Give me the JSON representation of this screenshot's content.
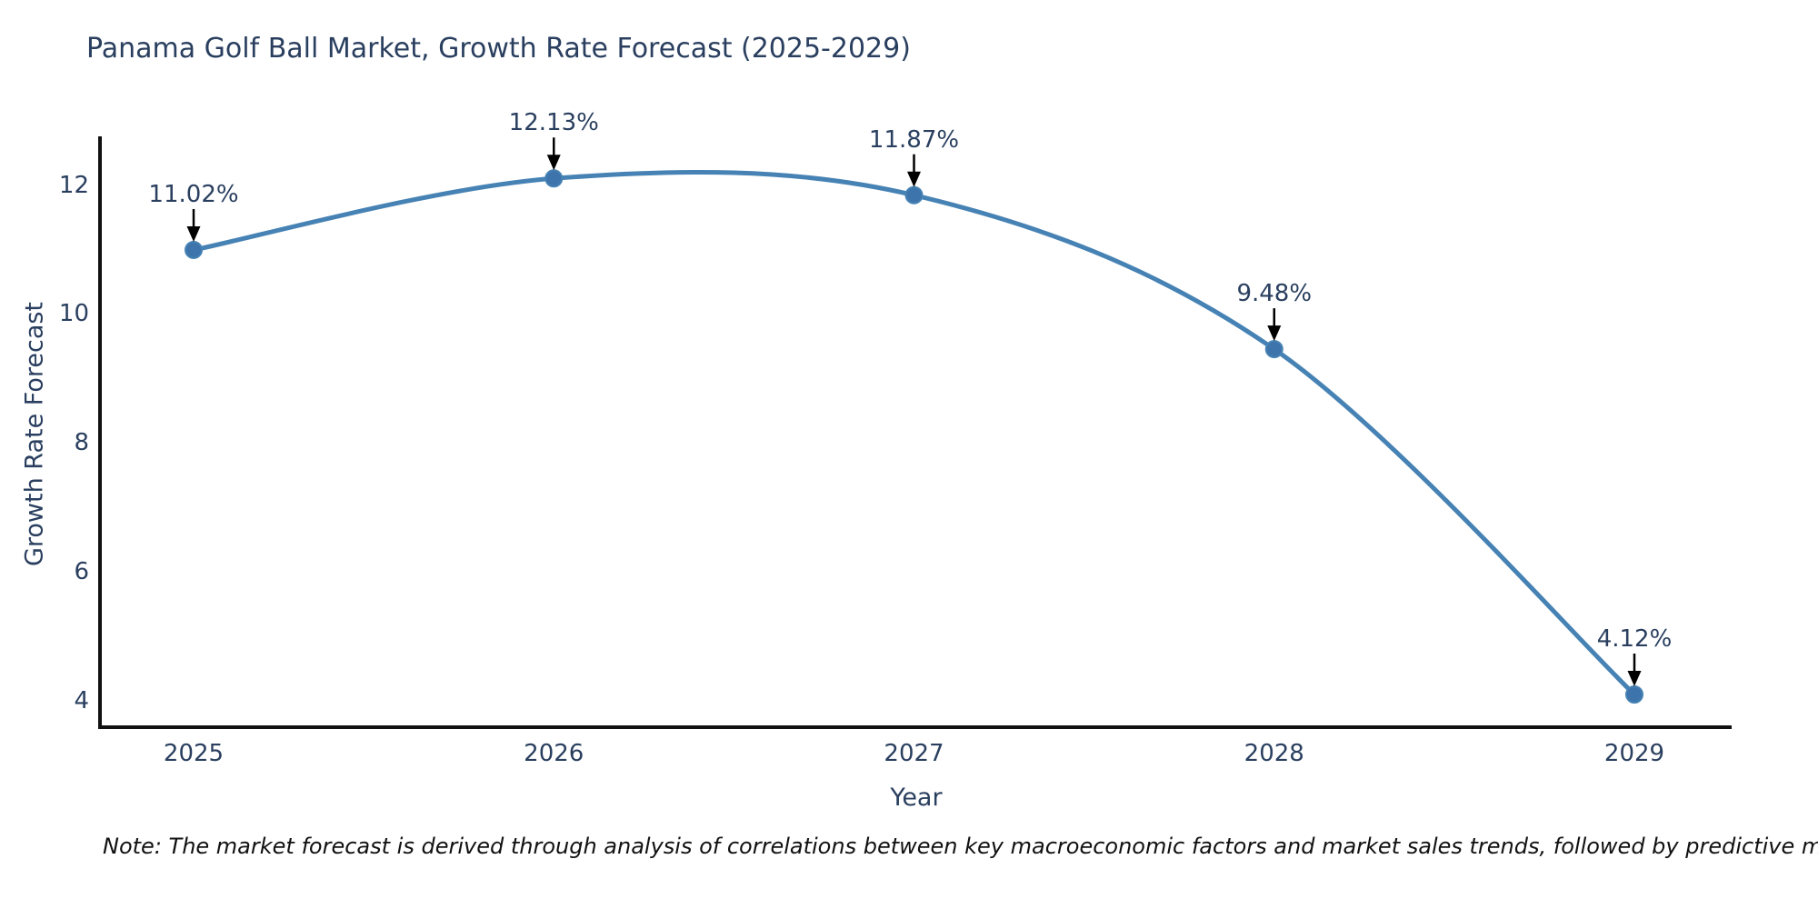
{
  "chart_data": {
    "type": "line",
    "title": "Panama Golf Ball Market, Growth Rate Forecast (2025-2029)",
    "xlabel": "Year",
    "ylabel": "Growth Rate Forecast",
    "x": [
      2025,
      2026,
      2027,
      2028,
      2029
    ],
    "values": [
      11.02,
      12.13,
      11.87,
      9.48,
      4.12
    ],
    "point_labels": [
      "11.02%",
      "12.13%",
      "11.87%",
      "9.48%",
      "4.12%"
    ],
    "x_tick_labels": [
      "2025",
      "2026",
      "2027",
      "2028",
      "2029"
    ],
    "y_ticks": [
      4,
      6,
      8,
      10,
      12
    ],
    "ylim": [
      3.6,
      12.8
    ],
    "grid": false,
    "legend": false,
    "line_color": "#4682b4",
    "marker_color": "#3d74ab",
    "axis_color": "#111111",
    "text_color": "#2a3f5f",
    "arrow_color": "#000000",
    "note": "Note: The market forecast is derived through analysis of correlations between key macroeconomic factors and market sales trends, followed by predictive modeling to project future sales"
  }
}
